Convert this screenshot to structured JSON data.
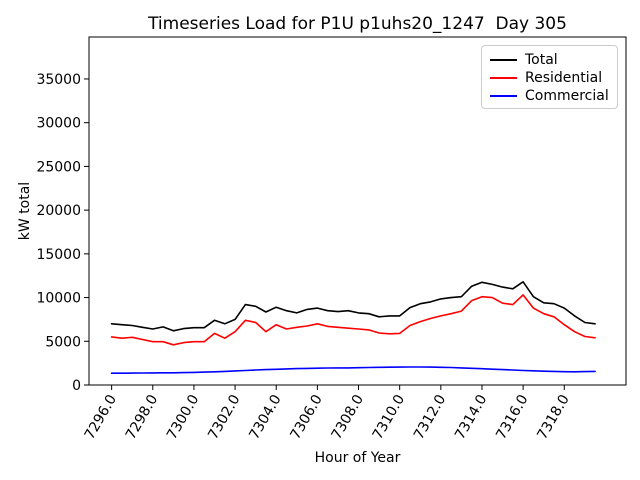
{
  "figure": {
    "title": "Timeseries Load for P1U p1uhs20_1247  Day 305",
    "xlabel": "Hour of Year",
    "ylabel": "kW total"
  },
  "chart_data": {
    "type": "line",
    "title": "Timeseries Load for P1U p1uhs20_1247  Day 305",
    "xlabel": "Hour of Year",
    "ylabel": "kW total",
    "xlim": [
      7294.9,
      7321.0
    ],
    "ylim": [
      0,
      39800
    ],
    "grid": false,
    "legend_position": "upper right",
    "x_ticks": [
      7296,
      7298,
      7300,
      7302,
      7304,
      7306,
      7308,
      7310,
      7312,
      7314,
      7316,
      7318
    ],
    "x_tick_labels": [
      "7296.0",
      "7298.0",
      "7300.0",
      "7302.0",
      "7304.0",
      "7306.0",
      "7308.0",
      "7310.0",
      "7312.0",
      "7314.0",
      "7316.0",
      "7318.0"
    ],
    "y_ticks": [
      0,
      5000,
      10000,
      15000,
      20000,
      25000,
      30000,
      35000
    ],
    "y_tick_labels": [
      "0",
      "5000",
      "10000",
      "15000",
      "20000",
      "25000",
      "30000",
      "35000"
    ],
    "x": [
      7296.0,
      7296.5,
      7297.0,
      7297.5,
      7298.0,
      7298.5,
      7299.0,
      7299.5,
      7300.0,
      7300.5,
      7301.0,
      7301.5,
      7302.0,
      7302.5,
      7303.0,
      7303.5,
      7304.0,
      7304.5,
      7305.0,
      7305.5,
      7306.0,
      7306.5,
      7307.0,
      7307.5,
      7308.0,
      7308.5,
      7309.0,
      7309.5,
      7310.0,
      7310.5,
      7311.0,
      7311.5,
      7312.0,
      7312.5,
      7313.0,
      7313.5,
      7314.0,
      7314.5,
      7315.0,
      7315.5,
      7316.0,
      7316.5,
      7317.0,
      7317.5,
      7318.0,
      7318.5,
      7319.0,
      7319.5
    ],
    "series": [
      {
        "name": "Total",
        "color": "#000000",
        "values": [
          7000,
          6900,
          6800,
          6600,
          6400,
          6650,
          6200,
          6450,
          6550,
          6550,
          7400,
          7000,
          7500,
          9200,
          9000,
          8350,
          8900,
          8500,
          8250,
          8650,
          8800,
          8500,
          8400,
          8500,
          8250,
          8150,
          7800,
          7900,
          7900,
          8850,
          9300,
          9500,
          9850,
          10000,
          10100,
          11300,
          11750,
          11500,
          11200,
          11000,
          11800,
          10100,
          9400,
          9300,
          8800,
          7900,
          7150,
          7000
        ]
      },
      {
        "name": "Residential",
        "color": "#ff0000",
        "values": [
          5500,
          5350,
          5450,
          5200,
          4950,
          4950,
          4600,
          4850,
          4950,
          4950,
          5900,
          5350,
          6100,
          7400,
          7150,
          6100,
          6900,
          6400,
          6600,
          6750,
          7000,
          6700,
          6600,
          6500,
          6400,
          6300,
          5950,
          5850,
          5900,
          6800,
          7250,
          7600,
          7900,
          8150,
          8450,
          9650,
          10100,
          10000,
          9350,
          9200,
          10300,
          8800,
          8150,
          7800,
          6900,
          6100,
          5550,
          5400
        ]
      },
      {
        "name": "Commercial",
        "color": "#0000ff",
        "values": [
          1350,
          1350,
          1360,
          1370,
          1380,
          1390,
          1400,
          1420,
          1440,
          1470,
          1510,
          1560,
          1610,
          1660,
          1710,
          1760,
          1800,
          1840,
          1870,
          1900,
          1920,
          1940,
          1950,
          1960,
          1980,
          2000,
          2020,
          2040,
          2050,
          2060,
          2060,
          2050,
          2030,
          2000,
          1960,
          1910,
          1860,
          1810,
          1760,
          1710,
          1660,
          1620,
          1580,
          1550,
          1520,
          1510,
          1530,
          1560
        ]
      }
    ]
  }
}
